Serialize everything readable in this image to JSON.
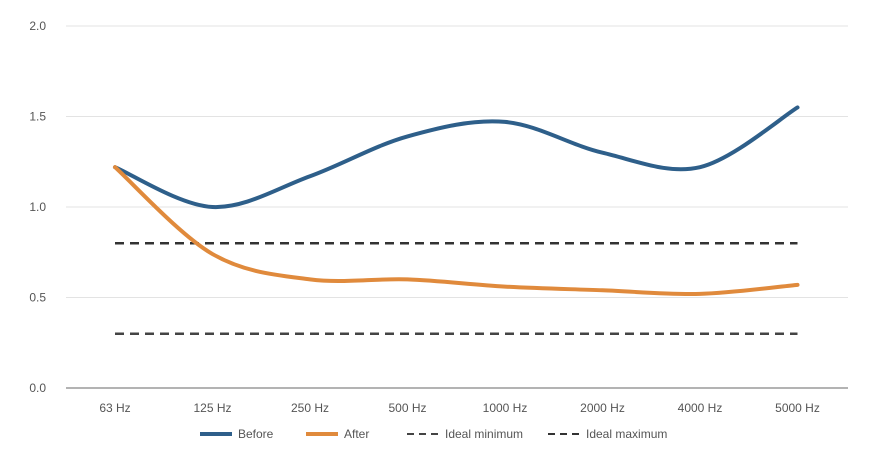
{
  "chart_data": {
    "type": "line",
    "categories": [
      "63 Hz",
      "125 Hz",
      "250 Hz",
      "500 Hz",
      "1000 Hz",
      "2000 Hz",
      "4000 Hz",
      "5000 Hz"
    ],
    "ylim": [
      0,
      2.0
    ],
    "yticks": [
      "0.0",
      "0.5",
      "1.0",
      "1.5",
      "2.0"
    ],
    "ytick_values": [
      0,
      0.5,
      1.0,
      1.5,
      2.0
    ],
    "grid": "horizontal",
    "legend_position": "bottom",
    "series": [
      {
        "name": "Before",
        "values": [
          1.22,
          1.0,
          1.17,
          1.39,
          1.47,
          1.3,
          1.22,
          1.55
        ],
        "color": "#2e5f8a",
        "style": "solid-smooth"
      },
      {
        "name": "After",
        "values": [
          1.22,
          0.74,
          0.6,
          0.6,
          0.56,
          0.54,
          0.52,
          0.57
        ],
        "color": "#e08a3c",
        "style": "solid-smooth"
      },
      {
        "name": "Ideal minimum",
        "values": [
          0.3,
          0.3,
          0.3,
          0.3,
          0.3,
          0.3,
          0.3,
          0.3
        ],
        "color": "#444444",
        "style": "dashed"
      },
      {
        "name": "Ideal maximum",
        "values": [
          0.8,
          0.8,
          0.8,
          0.8,
          0.8,
          0.8,
          0.8,
          0.8
        ],
        "color": "#333333",
        "style": "dashed"
      }
    ]
  }
}
